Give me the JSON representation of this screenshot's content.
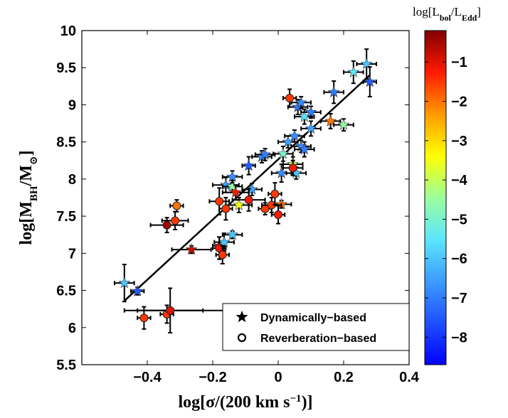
{
  "chart_data": {
    "type": "scatter",
    "xlabel": "log[σ/(200 km s⁻¹)]",
    "ylabel": "log[M_BH/M_⊙]",
    "xlim": [
      -0.6,
      0.4
    ],
    "ylim": [
      5.5,
      10
    ],
    "x_ticks": [
      "-0.4",
      "-0.2",
      "0",
      "0.2",
      "0.4"
    ],
    "y_ticks": [
      "5.5",
      "6",
      "6.5",
      "7",
      "7.5",
      "8",
      "8.5",
      "9",
      "9.5",
      "10"
    ],
    "colorbar": {
      "title": "log[L_bol/L_Edd]",
      "range": [
        -8.7,
        -0.2
      ],
      "ticks": [
        "-1",
        "-2",
        "-3",
        "-4",
        "-5",
        "-6",
        "-7",
        "-8"
      ]
    },
    "legend": {
      "position": "bottom-right",
      "entries": [
        "Dynamically−based",
        "Reverberation−based"
      ]
    },
    "fit_line": {
      "x": [
        -0.47,
        0.28
      ],
      "y": [
        6.36,
        9.4
      ]
    },
    "series": [
      {
        "name": "Dynamically−based",
        "marker": "star",
        "points": [
          {
            "x": -0.47,
            "y": 6.6,
            "xerr": 0.03,
            "yerr": 0.25,
            "c": -6.0
          },
          {
            "x": -0.43,
            "y": 6.49,
            "xerr": 0.02,
            "yerr": 0.05,
            "c": -7.5
          },
          {
            "x": -0.265,
            "y": 7.05,
            "xerr": 0.06,
            "yerr": 0.05,
            "c": -0.8
          },
          {
            "x": -0.18,
            "y": 7.1,
            "xerr": 0.02,
            "yerr": 0.12,
            "c": -1.5
          },
          {
            "x": -0.165,
            "y": 7.15,
            "xerr": 0.03,
            "yerr": 0.12,
            "c": -6.0
          },
          {
            "x": -0.14,
            "y": 7.25,
            "xerr": 0.03,
            "yerr": 0.05,
            "c": -6.0
          },
          {
            "x": -0.16,
            "y": 7.92,
            "xerr": 0.04,
            "yerr": 0.1,
            "c": -6.5
          },
          {
            "x": -0.14,
            "y": 7.9,
            "xerr": 0.03,
            "yerr": 0.08,
            "c": -4.5
          },
          {
            "x": -0.13,
            "y": 7.82,
            "xerr": 0.04,
            "yerr": 0.1,
            "c": -1.2
          },
          {
            "x": -0.14,
            "y": 8.03,
            "xerr": 0.03,
            "yerr": 0.08,
            "c": -6.8
          },
          {
            "x": -0.12,
            "y": 7.65,
            "xerr": 0.04,
            "yerr": 0.1,
            "c": -3.5
          },
          {
            "x": -0.09,
            "y": 8.18,
            "xerr": 0.02,
            "yerr": 0.12,
            "c": -7.5
          },
          {
            "x": -0.08,
            "y": 7.86,
            "xerr": 0.03,
            "yerr": 0.08,
            "c": -6.5
          },
          {
            "x": -0.05,
            "y": 8.3,
            "xerr": 0.03,
            "yerr": 0.08,
            "c": -6.8
          },
          {
            "x": -0.04,
            "y": 8.33,
            "xerr": 0.03,
            "yerr": 0.08,
            "c": -7.0
          },
          {
            "x": 0.01,
            "y": 7.66,
            "xerr": 0.03,
            "yerr": 0.05,
            "c": -2.0
          },
          {
            "x": 0.015,
            "y": 8.34,
            "xerr": 0.03,
            "yerr": 0.1,
            "c": -5.0
          },
          {
            "x": 0.01,
            "y": 8.08,
            "xerr": 0.03,
            "yerr": 0.12,
            "c": -6.8
          },
          {
            "x": 0.03,
            "y": 8.5,
            "xerr": 0.03,
            "yerr": 0.08,
            "c": -6.5
          },
          {
            "x": 0.045,
            "y": 8.2,
            "xerr": 0.03,
            "yerr": 0.1,
            "c": -4.0
          },
          {
            "x": 0.05,
            "y": 8.58,
            "xerr": 0.03,
            "yerr": 0.08,
            "c": -6.8
          },
          {
            "x": 0.055,
            "y": 8.08,
            "xerr": 0.03,
            "yerr": 0.08,
            "c": -6.0
          },
          {
            "x": 0.06,
            "y": 8.97,
            "xerr": 0.03,
            "yerr": 0.1,
            "c": -7.0
          },
          {
            "x": 0.07,
            "y": 9.03,
            "xerr": 0.03,
            "yerr": 0.08,
            "c": -6.8
          },
          {
            "x": 0.07,
            "y": 8.44,
            "xerr": 0.03,
            "yerr": 0.08,
            "c": -6.8
          },
          {
            "x": 0.08,
            "y": 8.84,
            "xerr": 0.03,
            "yerr": 0.1,
            "c": -5.5
          },
          {
            "x": 0.08,
            "y": 8.4,
            "xerr": 0.03,
            "yerr": 0.1,
            "c": -7.0
          },
          {
            "x": 0.1,
            "y": 8.68,
            "xerr": 0.03,
            "yerr": 0.1,
            "c": -6.5
          },
          {
            "x": 0.1,
            "y": 8.9,
            "xerr": 0.03,
            "yerr": 0.08,
            "c": -7.0
          },
          {
            "x": 0.16,
            "y": 8.78,
            "xerr": 0.03,
            "yerr": 0.1,
            "c": -2.0
          },
          {
            "x": 0.17,
            "y": 9.17,
            "xerr": 0.03,
            "yerr": 0.15,
            "c": -7.0
          },
          {
            "x": 0.2,
            "y": 8.73,
            "xerr": 0.03,
            "yerr": 0.08,
            "c": -4.5
          },
          {
            "x": 0.23,
            "y": 9.44,
            "xerr": 0.03,
            "yerr": 0.15,
            "c": -5.5
          },
          {
            "x": 0.27,
            "y": 9.55,
            "xerr": 0.03,
            "yerr": 0.2,
            "c": -6.0
          },
          {
            "x": 0.28,
            "y": 9.31,
            "xerr": 0.02,
            "yerr": 0.2,
            "c": -7.5
          }
        ]
      },
      {
        "name": "Reverberation−based",
        "marker": "circle",
        "points": [
          {
            "x": -0.41,
            "y": 6.13,
            "xerr": 0.02,
            "yerr": 0.15,
            "c": -1.5
          },
          {
            "x": -0.34,
            "y": 6.18,
            "xerr": 0.02,
            "yerr": 0.12,
            "c": -1.5
          },
          {
            "x": -0.33,
            "y": 6.23,
            "xerr": 0.1,
            "yerr": 0.3,
            "c": -1.0
          },
          {
            "x": -0.34,
            "y": 7.38,
            "xerr": 0.05,
            "yerr": 0.1,
            "c": -0.5
          },
          {
            "x": -0.315,
            "y": 7.44,
            "xerr": 0.04,
            "yerr": 0.12,
            "c": -1.5
          },
          {
            "x": -0.31,
            "y": 7.64,
            "xerr": 0.02,
            "yerr": 0.08,
            "c": -2.0
          },
          {
            "x": -0.18,
            "y": 7.07,
            "xerr": 0.02,
            "yerr": 0.15,
            "c": -1.2
          },
          {
            "x": -0.17,
            "y": 6.98,
            "xerr": 0.02,
            "yerr": 0.12,
            "c": -1.5
          },
          {
            "x": -0.18,
            "y": 7.7,
            "xerr": 0.03,
            "yerr": 0.18,
            "c": -1.5
          },
          {
            "x": -0.16,
            "y": 7.6,
            "xerr": 0.02,
            "yerr": 0.15,
            "c": -1.5
          },
          {
            "x": -0.09,
            "y": 7.72,
            "xerr": 0.05,
            "yerr": 0.15,
            "c": -1.2
          },
          {
            "x": -0.04,
            "y": 7.6,
            "xerr": 0.02,
            "yerr": 0.08,
            "c": -1.5
          },
          {
            "x": -0.02,
            "y": 7.65,
            "xerr": 0.03,
            "yerr": 0.1,
            "c": -1.5
          },
          {
            "x": -0.01,
            "y": 7.8,
            "xerr": 0.02,
            "yerr": 0.15,
            "c": -1.5
          },
          {
            "x": 0.0,
            "y": 7.52,
            "xerr": 0.02,
            "yerr": 0.12,
            "c": -1.2
          },
          {
            "x": 0.045,
            "y": 8.15,
            "xerr": 0.03,
            "yerr": 0.1,
            "c": -1.2
          },
          {
            "x": 0.035,
            "y": 9.09,
            "xerr": 0.02,
            "yerr": 0.12,
            "c": -1.5
          }
        ]
      }
    ],
    "extra_bar": {
      "x": -0.35,
      "y": 6.23,
      "xerr_left": 0.12,
      "xerr_right": 0.19
    }
  }
}
